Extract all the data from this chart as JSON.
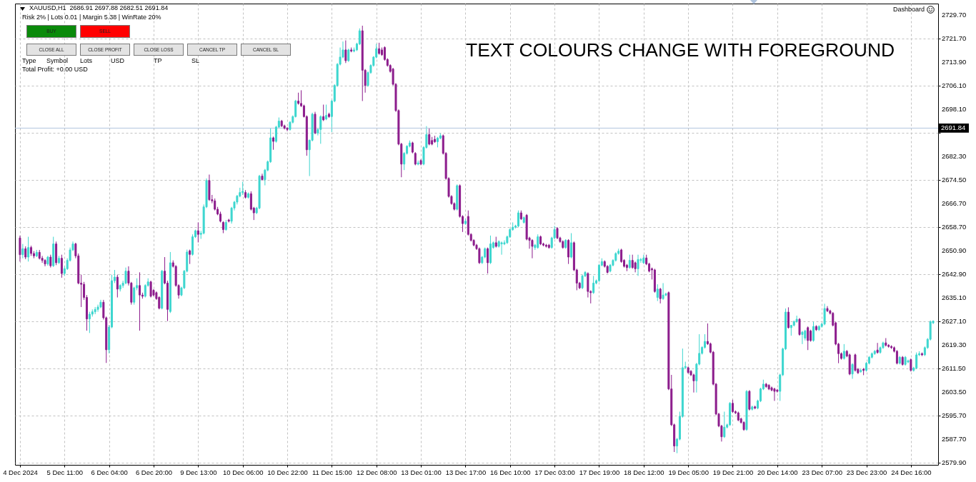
{
  "chart_data": {
    "type": "candlestick",
    "title": "XAUUSD,H1  2686.91 2697.88 2682.51 2691.84",
    "subtitle": "Risk 2% | Lots 0.01 | Margin 5.38 | WinRate 20%",
    "annotations": [
      "BUY",
      "SELL",
      "CLOSE ALL",
      "CLOSE PROFIT",
      "CLOSE LOSS",
      "CANCEL TP",
      "CANCEL SL",
      "Type",
      "Symbol",
      "Lots",
      "USD",
      "TP",
      "SL",
      "Total Profit: +0.00 USD",
      "TEXT COLOURS CHANGE WITH FOREGROUND",
      "Dashboard"
    ],
    "categories": [
      "4 Dec 2024",
      null,
      null,
      null,
      null,
      null,
      null,
      null,
      null,
      null,
      null,
      null,
      null,
      null,
      null,
      null,
      "5 Dec 11:00",
      null,
      null,
      null,
      null,
      null,
      null,
      null,
      null,
      null,
      null,
      null,
      null,
      null,
      null,
      null,
      "6 Dec 04:00",
      null,
      null,
      null,
      null,
      null,
      null,
      null,
      null,
      null,
      null,
      null,
      null,
      null,
      null,
      null,
      "6 Dec 20:00",
      null,
      null,
      null,
      null,
      null,
      null,
      null,
      null,
      null,
      null,
      null,
      null,
      null,
      null,
      null,
      "9 Dec 13:00",
      null,
      null,
      null,
      null,
      null,
      null,
      null,
      null,
      null,
      null,
      null,
      null,
      null,
      null,
      null,
      "10 Dec 06:00",
      null,
      null,
      null,
      null,
      null,
      null,
      null,
      null,
      null,
      null,
      null,
      null,
      null,
      null,
      null,
      "10 Dec 22:00",
      null,
      null,
      null,
      null,
      null,
      null,
      null,
      null,
      null,
      null,
      null,
      null,
      null,
      null,
      null,
      "11 Dec 15:00",
      null,
      null,
      null,
      null,
      null,
      null,
      null,
      null,
      null,
      null,
      null,
      null,
      null,
      null,
      null,
      "12 Dec 08:00",
      null,
      null,
      null,
      null,
      null,
      null,
      null,
      null,
      null,
      null,
      null,
      null,
      null,
      null,
      null,
      "13 Dec 01:00",
      null,
      null,
      null,
      null,
      null,
      null,
      null,
      null,
      null,
      null,
      null,
      null,
      null,
      null,
      null,
      "13 Dec 17:00",
      null,
      null,
      null,
      null,
      null,
      null,
      null,
      null,
      null,
      null,
      null,
      null,
      null,
      null,
      null,
      "16 Dec 10:00",
      null,
      null,
      null,
      null,
      null,
      null,
      null,
      null,
      null,
      null,
      null,
      null,
      null,
      null,
      null,
      "17 Dec 03:00",
      null,
      null,
      null,
      null,
      null,
      null,
      null,
      null,
      null,
      null,
      null,
      null,
      null,
      null,
      null,
      "17 Dec 19:00",
      null,
      null,
      null,
      null,
      null,
      null,
      null,
      null,
      null,
      null,
      null,
      null,
      null,
      null,
      null,
      "18 Dec 12:00",
      null,
      null,
      null,
      null,
      null,
      null,
      null,
      null,
      null,
      null,
      null,
      null,
      null,
      null,
      null,
      "19 Dec 05:00",
      null,
      null,
      null,
      null,
      null,
      null,
      null,
      null,
      null,
      null,
      null,
      null,
      null,
      null,
      null,
      "19 Dec 21:00",
      null,
      null,
      null,
      null,
      null,
      null,
      null,
      null,
      null,
      null,
      null,
      null,
      null,
      null,
      null,
      "20 Dec 14:00",
      null,
      null,
      null,
      null,
      null,
      null,
      null,
      null,
      null,
      null,
      null,
      null,
      null,
      null,
      null,
      "23 Dec 07:00",
      null,
      null,
      null,
      null,
      null,
      null,
      null,
      null,
      null,
      null,
      null,
      null,
      null,
      null,
      null,
      "23 Dec 23:00",
      null,
      null,
      null,
      null,
      null,
      null,
      null,
      null,
      null,
      null,
      null,
      null,
      null,
      null,
      null,
      "24 Dec 16:00",
      null,
      null,
      null,
      null,
      null,
      null,
      null,
      null
    ],
    "ohlc": [
      [
        2655.1,
        2655.9,
        2647.2,
        2649.5
      ],
      [
        2649.5,
        2653.1,
        2648.3,
        2651.5
      ],
      [
        2651.5,
        2652.3,
        2648.0,
        2648.7
      ],
      [
        2648.7,
        2655.5,
        2647.2,
        2651.9
      ],
      [
        2651.9,
        2652.5,
        2649.1,
        2649.9
      ],
      [
        2649.9,
        2650.7,
        2648.3,
        2649.1
      ],
      [
        2649.1,
        2651.1,
        2648.7,
        2650.3
      ],
      [
        2650.3,
        2651.1,
        2647.9,
        2648.3
      ],
      [
        2648.3,
        2649.1,
        2646.8,
        2647.6
      ],
      [
        2647.6,
        2648.0,
        2645.6,
        2646.4
      ],
      [
        2646.4,
        2649.1,
        2645.8,
        2648.7
      ],
      [
        2648.7,
        2649.5,
        2645.2,
        2645.8
      ],
      [
        2645.8,
        2655.5,
        2645.4,
        2653.1
      ],
      [
        2653.1,
        2653.9,
        2646.0,
        2646.8
      ],
      [
        2646.8,
        2649.1,
        2646.4,
        2648.3
      ],
      [
        2648.3,
        2649.5,
        2641.8,
        2643.2
      ],
      [
        2643.2,
        2645.6,
        2642.4,
        2644.8
      ],
      [
        2644.8,
        2648.3,
        2644.4,
        2647.6
      ],
      [
        2647.6,
        2651.9,
        2647.2,
        2651.1
      ],
      [
        2651.1,
        2653.9,
        2650.7,
        2653.1
      ],
      [
        2653.1,
        2653.5,
        2648.3,
        2649.1
      ],
      [
        2649.1,
        2649.9,
        2639.6,
        2640.0
      ],
      [
        2640.0,
        2642.8,
        2632.0,
        2639.6
      ],
      [
        2639.6,
        2640.4,
        2634.4,
        2635.2
      ],
      [
        2635.2,
        2636.0,
        2624.1,
        2628.0
      ],
      [
        2628.0,
        2630.4,
        2623.3,
        2629.6
      ],
      [
        2629.6,
        2631.2,
        2628.8,
        2630.4
      ],
      [
        2630.4,
        2632.0,
        2629.6,
        2631.2
      ],
      [
        2631.2,
        2632.8,
        2630.4,
        2632.0
      ],
      [
        2632.0,
        2634.4,
        2631.6,
        2633.6
      ],
      [
        2633.6,
        2634.4,
        2627.8,
        2628.4
      ],
      [
        2628.4,
        2628.8,
        2613.3,
        2617.7
      ],
      [
        2617.7,
        2626.0,
        2616.5,
        2625.3
      ],
      [
        2625.3,
        2642.8,
        2624.9,
        2640.8
      ],
      [
        2640.8,
        2644.4,
        2640.0,
        2642.0
      ],
      [
        2642.0,
        2642.8,
        2635.2,
        2638.0
      ],
      [
        2638.0,
        2639.6,
        2637.2,
        2639.2
      ],
      [
        2639.2,
        2640.8,
        2638.4,
        2640.0
      ],
      [
        2640.0,
        2645.2,
        2639.6,
        2644.0
      ],
      [
        2644.0,
        2645.6,
        2639.2,
        2640.0
      ],
      [
        2640.0,
        2640.4,
        2632.8,
        2633.6
      ],
      [
        2633.6,
        2638.8,
        2632.8,
        2638.4
      ],
      [
        2638.4,
        2641.6,
        2637.6,
        2639.2
      ],
      [
        2639.2,
        2643.6,
        2624.1,
        2636.0
      ],
      [
        2636.0,
        2636.8,
        2634.8,
        2635.6
      ],
      [
        2635.6,
        2639.6,
        2635.2,
        2639.2
      ],
      [
        2639.2,
        2641.6,
        2638.8,
        2640.4
      ],
      [
        2640.4,
        2640.8,
        2635.2,
        2635.6
      ],
      [
        2637.6,
        2638.0,
        2635.6,
        2636.0
      ],
      [
        2636.8,
        2637.2,
        2634.4,
        2634.8
      ],
      [
        2635.2,
        2635.6,
        2631.2,
        2631.6
      ],
      [
        2631.6,
        2644.4,
        2631.2,
        2644.0
      ],
      [
        2644.0,
        2648.7,
        2639.6,
        2640.0
      ],
      [
        2640.0,
        2640.8,
        2627.3,
        2631.2
      ],
      [
        2630.5,
        2650.4,
        2630.0,
        2646.8
      ],
      [
        2646.8,
        2647.6,
        2645.2,
        2645.6
      ],
      [
        2645.6,
        2646.0,
        2638.8,
        2639.2
      ],
      [
        2639.2,
        2639.6,
        2634.8,
        2636.0
      ],
      [
        2636.0,
        2638.8,
        2635.6,
        2638.4
      ],
      [
        2638.4,
        2644.4,
        2638.0,
        2644.0
      ],
      [
        2644.0,
        2651.2,
        2643.6,
        2650.4
      ],
      [
        2650.8,
        2651.2,
        2646.4,
        2649.6
      ],
      [
        2649.6,
        2656.3,
        2649.2,
        2655.5
      ],
      [
        2655.5,
        2657.9,
        2655.1,
        2657.5
      ],
      [
        2657.5,
        2660.3,
        2653.6,
        2656.3
      ],
      [
        2656.3,
        2657.5,
        2654.8,
        2656.7
      ],
      [
        2656.7,
        2666.3,
        2656.3,
        2665.5
      ],
      [
        2665.5,
        2675.0,
        2665.1,
        2674.3
      ],
      [
        2674.3,
        2676.3,
        2667.5,
        2667.9
      ],
      [
        2667.9,
        2669.5,
        2666.7,
        2667.5
      ],
      [
        2667.5,
        2668.3,
        2664.3,
        2664.7
      ],
      [
        2664.7,
        2665.5,
        2662.7,
        2663.1
      ],
      [
        2663.1,
        2663.9,
        2660.3,
        2660.7
      ],
      [
        2660.3,
        2660.7,
        2656.7,
        2657.9
      ],
      [
        2657.9,
        2661.1,
        2657.5,
        2660.3
      ],
      [
        2661.1,
        2661.5,
        2660.3,
        2660.7
      ],
      [
        2660.7,
        2665.5,
        2659.9,
        2665.1
      ],
      [
        2665.1,
        2667.5,
        2664.3,
        2667.1
      ],
      [
        2667.1,
        2669.5,
        2666.3,
        2669.1
      ],
      [
        2669.1,
        2671.9,
        2668.7,
        2670.3
      ],
      [
        2670.3,
        2673.9,
        2669.5,
        2670.7
      ],
      [
        2670.3,
        2671.1,
        2668.3,
        2668.7
      ],
      [
        2668.7,
        2670.3,
        2668.3,
        2669.9
      ],
      [
        2669.9,
        2670.7,
        2664.3,
        2664.7
      ],
      [
        2665.1,
        2665.5,
        2661.1,
        2663.5
      ],
      [
        2663.5,
        2665.5,
        2663.1,
        2665.1
      ],
      [
        2665.1,
        2676.2,
        2664.7,
        2675.8
      ],
      [
        2675.8,
        2676.6,
        2674.3,
        2674.6
      ],
      [
        2674.6,
        2678.2,
        2672.7,
        2677.8
      ],
      [
        2677.8,
        2681.0,
        2677.4,
        2680.6
      ],
      [
        2680.6,
        2691.8,
        2680.2,
        2688.6
      ],
      [
        2688.6,
        2689.0,
        2684.6,
        2687.4
      ],
      [
        2687.4,
        2692.6,
        2687.0,
        2692.2
      ],
      [
        2692.2,
        2695.4,
        2691.8,
        2694.2
      ],
      [
        2694.2,
        2694.6,
        2692.2,
        2692.6
      ],
      [
        2692.6,
        2693.0,
        2691.4,
        2691.8
      ],
      [
        2691.8,
        2692.2,
        2690.8,
        2691.4
      ],
      [
        2691.4,
        2694.2,
        2691.0,
        2693.8
      ],
      [
        2693.8,
        2696.1,
        2693.4,
        2695.7
      ],
      [
        2695.7,
        2701.3,
        2695.4,
        2700.9
      ],
      [
        2700.9,
        2703.7,
        2699.7,
        2700.1
      ],
      [
        2700.1,
        2704.5,
        2698.9,
        2699.3
      ],
      [
        2699.3,
        2699.7,
        2695.4,
        2695.7
      ],
      [
        2695.7,
        2696.1,
        2682.6,
        2684.6
      ],
      [
        2684.6,
        2688.0,
        2675.8,
        2687.8
      ],
      [
        2687.8,
        2697.0,
        2687.4,
        2696.5
      ],
      [
        2696.5,
        2697.3,
        2689.8,
        2690.2
      ],
      [
        2690.2,
        2691.8,
        2689.4,
        2691.4
      ],
      [
        2691.4,
        2696.1,
        2686.6,
        2695.7
      ],
      [
        2695.7,
        2699.7,
        2694.2,
        2694.6
      ],
      [
        2694.9,
        2699.7,
        2694.5,
        2696.1
      ],
      [
        2696.5,
        2697.0,
        2695.3,
        2695.7
      ],
      [
        2695.7,
        2701.3,
        2690.5,
        2700.9
      ],
      [
        2700.9,
        2706.5,
        2700.5,
        2706.1
      ],
      [
        2706.1,
        2713.6,
        2705.7,
        2713.2
      ],
      [
        2713.2,
        2718.8,
        2712.8,
        2715.6
      ],
      [
        2715.6,
        2720.8,
        2715.2,
        2718.0
      ],
      [
        2718.0,
        2721.2,
        2713.6,
        2714.4
      ],
      [
        2714.4,
        2718.4,
        2714.0,
        2718.0
      ],
      [
        2718.0,
        2718.8,
        2717.2,
        2717.6
      ],
      [
        2717.6,
        2718.8,
        2717.2,
        2718.0
      ],
      [
        2718.0,
        2720.4,
        2717.6,
        2720.0
      ],
      [
        2720.0,
        2725.2,
        2719.6,
        2724.4
      ],
      [
        2724.4,
        2726.1,
        2700.9,
        2711.2
      ],
      [
        2711.2,
        2711.6,
        2703.7,
        2706.1
      ],
      [
        2706.1,
        2710.8,
        2705.7,
        2710.4
      ],
      [
        2710.4,
        2713.2,
        2710.0,
        2712.8
      ],
      [
        2712.8,
        2715.9,
        2712.4,
        2715.6
      ],
      [
        2715.6,
        2720.0,
        2715.2,
        2718.4
      ],
      [
        2718.4,
        2720.4,
        2716.4,
        2716.8
      ],
      [
        2718.0,
        2718.8,
        2716.0,
        2716.4
      ],
      [
        2718.8,
        2719.2,
        2714.4,
        2714.8
      ],
      [
        2714.8,
        2715.2,
        2712.4,
        2712.8
      ],
      [
        2712.8,
        2713.2,
        2710.4,
        2710.8
      ],
      [
        2711.6,
        2712.0,
        2706.1,
        2706.5
      ],
      [
        2706.5,
        2706.9,
        2697.3,
        2697.7
      ],
      [
        2697.7,
        2698.1,
        2686.1,
        2686.5
      ],
      [
        2686.5,
        2686.9,
        2675.4,
        2679.8
      ],
      [
        2679.8,
        2683.8,
        2677.8,
        2683.4
      ],
      [
        2683.4,
        2686.1,
        2683.0,
        2685.8
      ],
      [
        2685.8,
        2687.7,
        2685.4,
        2686.9
      ],
      [
        2686.9,
        2687.3,
        2683.4,
        2683.8
      ],
      [
        2683.4,
        2683.8,
        2679.4,
        2679.8
      ],
      [
        2679.8,
        2681.0,
        2679.4,
        2680.2
      ],
      [
        2681.0,
        2681.4,
        2679.4,
        2679.8
      ],
      [
        2679.8,
        2685.8,
        2679.4,
        2685.4
      ],
      [
        2685.4,
        2692.5,
        2685.0,
        2689.7
      ],
      [
        2689.7,
        2691.7,
        2686.1,
        2686.5
      ],
      [
        2687.7,
        2688.9,
        2686.1,
        2686.5
      ],
      [
        2688.1,
        2689.3,
        2686.9,
        2687.3
      ],
      [
        2687.3,
        2688.9,
        2685.4,
        2688.5
      ],
      [
        2688.5,
        2690.1,
        2688.1,
        2689.3
      ],
      [
        2689.3,
        2689.7,
        2683.0,
        2683.4
      ],
      [
        2683.4,
        2683.8,
        2674.6,
        2675.0
      ],
      [
        2675.0,
        2675.4,
        2668.6,
        2669.0
      ],
      [
        2669.0,
        2669.4,
        2666.2,
        2666.6
      ],
      [
        2666.6,
        2667.0,
        2664.3,
        2664.7
      ],
      [
        2664.7,
        2673.0,
        2664.3,
        2672.6
      ],
      [
        2672.6,
        2673.0,
        2661.9,
        2662.3
      ],
      [
        2662.3,
        2662.7,
        2657.1,
        2659.9
      ],
      [
        2659.9,
        2661.5,
        2659.5,
        2660.7
      ],
      [
        2662.3,
        2664.3,
        2655.9,
        2656.3
      ],
      [
        2656.3,
        2656.7,
        2653.9,
        2654.3
      ],
      [
        2654.3,
        2654.7,
        2652.3,
        2652.7
      ],
      [
        2652.7,
        2653.1,
        2651.1,
        2651.5
      ],
      [
        2651.5,
        2651.9,
        2646.4,
        2646.8
      ],
      [
        2646.8,
        2649.1,
        2646.4,
        2648.7
      ],
      [
        2648.7,
        2651.9,
        2648.3,
        2651.5
      ],
      [
        2651.5,
        2651.9,
        2643.2,
        2646.8
      ],
      [
        2646.8,
        2655.9,
        2646.4,
        2653.1
      ],
      [
        2651.9,
        2653.9,
        2651.5,
        2653.5
      ],
      [
        2653.5,
        2655.5,
        2651.9,
        2652.3
      ],
      [
        2652.3,
        2654.3,
        2651.9,
        2653.9
      ],
      [
        2653.1,
        2653.9,
        2649.5,
        2653.5
      ],
      [
        2653.1,
        2654.3,
        2652.7,
        2653.5
      ],
      [
        2653.5,
        2655.9,
        2653.1,
        2655.5
      ],
      [
        2655.5,
        2658.3,
        2655.1,
        2657.9
      ],
      [
        2657.9,
        2660.3,
        2657.5,
        2658.7
      ],
      [
        2658.7,
        2659.5,
        2658.3,
        2659.1
      ],
      [
        2659.1,
        2664.3,
        2658.7,
        2663.5
      ],
      [
        2663.5,
        2664.3,
        2661.1,
        2661.5
      ],
      [
        2660.3,
        2662.3,
        2659.9,
        2661.9
      ],
      [
        2662.7,
        2663.1,
        2654.3,
        2654.7
      ],
      [
        2655.1,
        2655.5,
        2651.5,
        2654.3
      ],
      [
        2654.3,
        2654.7,
        2648.3,
        2652.3
      ],
      [
        2651.9,
        2653.1,
        2651.1,
        2652.7
      ],
      [
        2651.9,
        2656.3,
        2651.5,
        2655.5
      ],
      [
        2655.5,
        2655.9,
        2652.7,
        2653.1
      ],
      [
        2653.1,
        2653.5,
        2652.3,
        2652.7
      ],
      [
        2652.7,
        2653.1,
        2651.9,
        2652.3
      ],
      [
        2652.7,
        2653.1,
        2651.5,
        2651.9
      ],
      [
        2651.9,
        2655.5,
        2651.5,
        2655.1
      ],
      [
        2655.1,
        2659.1,
        2654.7,
        2657.9
      ],
      [
        2658.3,
        2658.7,
        2654.7,
        2655.1
      ],
      [
        2655.1,
        2655.5,
        2653.5,
        2653.9
      ],
      [
        2653.9,
        2654.3,
        2651.5,
        2651.9
      ],
      [
        2651.9,
        2654.7,
        2651.5,
        2654.3
      ],
      [
        2654.3,
        2654.7,
        2646.4,
        2648.7
      ],
      [
        2648.7,
        2656.7,
        2648.3,
        2653.5
      ],
      [
        2653.5,
        2653.9,
        2644.0,
        2644.4
      ],
      [
        2644.4,
        2644.8,
        2637.6,
        2640.0
      ],
      [
        2640.0,
        2640.4,
        2638.0,
        2638.4
      ],
      [
        2638.4,
        2642.8,
        2638.0,
        2642.4
      ],
      [
        2642.4,
        2644.0,
        2642.0,
        2643.6
      ],
      [
        2643.2,
        2643.6,
        2635.2,
        2637.2
      ],
      [
        2637.2,
        2637.6,
        2633.2,
        2636.8
      ],
      [
        2636.8,
        2642.4,
        2636.4,
        2640.0
      ],
      [
        2640.0,
        2641.2,
        2639.6,
        2640.8
      ],
      [
        2640.8,
        2646.4,
        2640.4,
        2646.0
      ],
      [
        2646.0,
        2648.3,
        2645.6,
        2647.2
      ],
      [
        2647.2,
        2647.6,
        2645.2,
        2645.6
      ],
      [
        2645.6,
        2646.0,
        2643.2,
        2643.6
      ],
      [
        2644.0,
        2646.4,
        2643.6,
        2646.0
      ],
      [
        2646.0,
        2648.0,
        2645.6,
        2647.6
      ],
      [
        2647.6,
        2650.3,
        2647.2,
        2649.9
      ],
      [
        2649.9,
        2651.5,
        2649.5,
        2650.7
      ],
      [
        2651.1,
        2651.5,
        2646.8,
        2647.2
      ],
      [
        2647.6,
        2648.0,
        2645.2,
        2645.6
      ],
      [
        2646.0,
        2646.4,
        2644.0,
        2645.2
      ],
      [
        2645.2,
        2649.5,
        2644.8,
        2647.6
      ],
      [
        2647.6,
        2649.5,
        2644.8,
        2645.2
      ],
      [
        2646.8,
        2647.2,
        2643.6,
        2644.8
      ],
      [
        2644.8,
        2649.5,
        2642.4,
        2647.9
      ],
      [
        2647.6,
        2648.4,
        2646.8,
        2647.9
      ],
      [
        2646.8,
        2649.5,
        2646.4,
        2648.4
      ],
      [
        2648.4,
        2649.5,
        2646.0,
        2646.4
      ],
      [
        2646.4,
        2646.8,
        2643.6,
        2644.0
      ],
      [
        2644.8,
        2645.2,
        2641.2,
        2644.4
      ],
      [
        2644.4,
        2644.8,
        2636.8,
        2637.2
      ],
      [
        2635.2,
        2639.6,
        2634.0,
        2638.0
      ],
      [
        2638.0,
        2638.4,
        2633.2,
        2634.8
      ],
      [
        2634.8,
        2640.0,
        2634.4,
        2636.0
      ],
      [
        2636.0,
        2636.8,
        2635.6,
        2636.4
      ],
      [
        2636.8,
        2637.2,
        2604.2,
        2604.6
      ],
      [
        2604.6,
        2609.3,
        2592.2,
        2592.6
      ],
      [
        2592.6,
        2593.0,
        2583.5,
        2585.5
      ],
      [
        2585.5,
        2588.2,
        2583.1,
        2587.8
      ],
      [
        2587.8,
        2597.0,
        2587.4,
        2595.4
      ],
      [
        2595.4,
        2618.1,
        2595.0,
        2611.7
      ],
      [
        2611.7,
        2613.7,
        2611.3,
        2612.1
      ],
      [
        2611.7,
        2612.1,
        2609.7,
        2610.1
      ],
      [
        2610.5,
        2610.9,
        2608.9,
        2609.3
      ],
      [
        2609.3,
        2609.7,
        2603.4,
        2607.3
      ],
      [
        2607.3,
        2613.3,
        2603.4,
        2612.9
      ],
      [
        2612.9,
        2622.9,
        2612.5,
        2616.5
      ],
      [
        2616.5,
        2618.9,
        2616.1,
        2618.5
      ],
      [
        2618.5,
        2622.9,
        2618.1,
        2620.5
      ],
      [
        2620.5,
        2626.5,
        2619.3,
        2619.7
      ],
      [
        2619.7,
        2620.1,
        2616.5,
        2616.9
      ],
      [
        2616.9,
        2617.3,
        2605.8,
        2606.2
      ],
      [
        2606.2,
        2606.6,
        2595.8,
        2596.2
      ],
      [
        2596.2,
        2596.6,
        2591.8,
        2592.2
      ],
      [
        2592.2,
        2592.6,
        2587.0,
        2588.6
      ],
      [
        2588.6,
        2597.0,
        2588.2,
        2591.8
      ],
      [
        2591.8,
        2593.0,
        2591.4,
        2592.6
      ],
      [
        2592.6,
        2600.2,
        2592.2,
        2599.8
      ],
      [
        2599.8,
        2601.0,
        2596.6,
        2597.0
      ],
      [
        2597.0,
        2597.4,
        2596.2,
        2596.6
      ],
      [
        2596.6,
        2597.0,
        2593.8,
        2594.2
      ],
      [
        2594.6,
        2595.0,
        2593.0,
        2593.4
      ],
      [
        2593.4,
        2593.8,
        2590.6,
        2591.0
      ],
      [
        2591.0,
        2604.2,
        2590.6,
        2603.8
      ],
      [
        2603.8,
        2604.2,
        2597.4,
        2597.8
      ],
      [
        2597.8,
        2599.0,
        2597.4,
        2598.6
      ],
      [
        2598.6,
        2599.0,
        2597.8,
        2598.2
      ],
      [
        2598.2,
        2601.0,
        2597.8,
        2600.6
      ],
      [
        2600.6,
        2605.0,
        2600.2,
        2604.6
      ],
      [
        2604.6,
        2607.7,
        2604.2,
        2606.2
      ],
      [
        2606.2,
        2606.6,
        2605.0,
        2605.4
      ],
      [
        2605.8,
        2606.2,
        2604.2,
        2604.6
      ],
      [
        2605.0,
        2605.4,
        2603.8,
        2604.2
      ],
      [
        2604.6,
        2605.0,
        2600.6,
        2603.8
      ],
      [
        2604.2,
        2604.6,
        2603.4,
        2603.8
      ],
      [
        2603.8,
        2609.7,
        2600.6,
        2609.3
      ],
      [
        2609.3,
        2618.4,
        2608.9,
        2618.0
      ],
      [
        2618.0,
        2631.5,
        2617.6,
        2630.3
      ],
      [
        2630.3,
        2631.9,
        2624.8,
        2625.1
      ],
      [
        2625.1,
        2626.0,
        2622.4,
        2625.9
      ],
      [
        2625.9,
        2627.5,
        2625.5,
        2627.1
      ],
      [
        2627.1,
        2629.1,
        2626.7,
        2627.9
      ],
      [
        2627.9,
        2628.3,
        2622.4,
        2622.8
      ],
      [
        2622.8,
        2624.0,
        2619.6,
        2623.6
      ],
      [
        2621.6,
        2624.4,
        2620.8,
        2624.0
      ],
      [
        2625.1,
        2625.5,
        2617.6,
        2620.8
      ],
      [
        2624.0,
        2624.4,
        2620.4,
        2620.8
      ],
      [
        2620.8,
        2627.1,
        2620.4,
        2625.5
      ],
      [
        2625.5,
        2625.9,
        2624.0,
        2624.4
      ],
      [
        2624.4,
        2625.9,
        2624.0,
        2625.5
      ],
      [
        2625.5,
        2626.7,
        2625.1,
        2626.3
      ],
      [
        2626.3,
        2633.1,
        2625.9,
        2631.5
      ],
      [
        2631.5,
        2632.3,
        2630.3,
        2630.7
      ],
      [
        2630.7,
        2631.1,
        2629.5,
        2629.9
      ],
      [
        2629.9,
        2630.3,
        2625.5,
        2625.9
      ],
      [
        2626.7,
        2627.1,
        2619.2,
        2619.6
      ],
      [
        2619.6,
        2620.0,
        2613.2,
        2616.4
      ],
      [
        2616.4,
        2616.8,
        2614.4,
        2614.8
      ],
      [
        2614.8,
        2619.6,
        2614.4,
        2617.2
      ],
      [
        2617.2,
        2617.6,
        2615.2,
        2615.6
      ],
      [
        2616.0,
        2616.4,
        2609.2,
        2609.6
      ],
      [
        2609.6,
        2613.2,
        2608.0,
        2612.8
      ],
      [
        2616.0,
        2616.4,
        2610.4,
        2610.8
      ],
      [
        2611.2,
        2611.6,
        2609.6,
        2610.0
      ],
      [
        2610.4,
        2611.2,
        2610.0,
        2610.8
      ],
      [
        2611.2,
        2611.6,
        2609.2,
        2610.8
      ],
      [
        2610.8,
        2613.6,
        2610.4,
        2613.2
      ],
      [
        2613.2,
        2615.6,
        2612.8,
        2615.2
      ],
      [
        2615.2,
        2616.8,
        2614.8,
        2616.4
      ],
      [
        2616.4,
        2617.6,
        2616.0,
        2617.2
      ],
      [
        2617.6,
        2620.0,
        2616.4,
        2616.8
      ],
      [
        2616.8,
        2618.8,
        2616.4,
        2618.4
      ],
      [
        2618.4,
        2620.4,
        2618.0,
        2620.0
      ],
      [
        2620.0,
        2621.6,
        2618.8,
        2619.2
      ],
      [
        2619.2,
        2619.6,
        2618.4,
        2618.8
      ],
      [
        2618.8,
        2619.2,
        2618.0,
        2618.4
      ],
      [
        2618.4,
        2618.8,
        2616.8,
        2617.2
      ],
      [
        2617.2,
        2617.6,
        2612.8,
        2613.2
      ],
      [
        2613.2,
        2615.6,
        2612.8,
        2615.2
      ],
      [
        2615.2,
        2615.6,
        2612.4,
        2612.8
      ],
      [
        2612.8,
        2615.6,
        2612.4,
        2615.2
      ],
      [
        2613.6,
        2614.4,
        2613.2,
        2614.0
      ],
      [
        2614.4,
        2614.8,
        2610.4,
        2610.8
      ],
      [
        2610.8,
        2612.0,
        2610.4,
        2611.6
      ],
      [
        2611.6,
        2616.8,
        2611.2,
        2616.0
      ],
      [
        2616.0,
        2617.2,
        2615.6,
        2616.4
      ],
      [
        2616.4,
        2616.8,
        2615.6,
        2616.0
      ],
      [
        2616.0,
        2618.8,
        2615.6,
        2618.4
      ],
      [
        2618.4,
        2621.6,
        2618.0,
        2621.2
      ],
      [
        2621.2,
        2627.5,
        2620.8,
        2627.1
      ],
      [
        2626.7,
        2627.5,
        2626.3,
        2627.3
      ]
    ],
    "colors": [
      "#8c1c8c",
      "#3dd6cf",
      "#8c1c8c",
      "#3dd6cf",
      "#8c1c8c",
      "#8c1c8c",
      "#3dd6cf",
      "#8c1c8c",
      "#8c1c8c",
      "#8c1c8c",
      "#3dd6cf",
      "#8c1c8c",
      "#3dd6cf",
      "#8c1c8c",
      "#3dd6cf",
      "#8c1c8c",
      "#3dd6cf",
      "#3dd6cf",
      "#3dd6cf",
      "#3dd6cf",
      "#8c1c8c",
      "#8c1c8c",
      "#8c1c8c",
      "#8c1c8c",
      "#8c1c8c",
      "#3dd6cf",
      "#3dd6cf",
      "#3dd6cf",
      "#3dd6cf",
      "#3dd6cf",
      "#8c1c8c",
      "#8c1c8c",
      "#3dd6cf",
      "#3dd6cf",
      "#3dd6cf",
      "#8c1c8c",
      "#3dd6cf",
      "#3dd6cf",
      "#3dd6cf",
      "#8c1c8c",
      "#8c1c8c",
      "#3dd6cf",
      "#3dd6cf",
      "#8c1c8c",
      "#8c1c8c",
      "#3dd6cf",
      "#3dd6cf",
      "#8c1c8c",
      "#8c1c8c",
      "#8c1c8c",
      "#8c1c8c",
      "#3dd6cf",
      "#8c1c8c",
      "#8c1c8c",
      "#3dd6cf",
      "#8c1c8c",
      "#8c1c8c",
      "#8c1c8c",
      "#3dd6cf",
      "#3dd6cf",
      "#3dd6cf",
      "#8c1c8c",
      "#3dd6cf",
      "#3dd6cf",
      "#8c1c8c",
      "#3dd6cf",
      "#3dd6cf",
      "#3dd6cf",
      "#8c1c8c",
      "#8c1c8c",
      "#8c1c8c",
      "#8c1c8c",
      "#8c1c8c",
      "#8c1c8c",
      "#3dd6cf",
      "#8c1c8c",
      "#3dd6cf",
      "#3dd6cf",
      "#3dd6cf",
      "#3dd6cf",
      "#3dd6cf",
      "#8c1c8c",
      "#3dd6cf",
      "#8c1c8c",
      "#8c1c8c",
      "#3dd6cf",
      "#3dd6cf",
      "#8c1c8c",
      "#3dd6cf",
      "#3dd6cf",
      "#3dd6cf",
      "#8c1c8c",
      "#3dd6cf",
      "#3dd6cf",
      "#8c1c8c",
      "#8c1c8c",
      "#8c1c8c",
      "#3dd6cf",
      "#3dd6cf",
      "#3dd6cf",
      "#8c1c8c",
      "#8c1c8c",
      "#8c1c8c",
      "#8c1c8c",
      "#3dd6cf",
      "#3dd6cf",
      "#8c1c8c",
      "#3dd6cf",
      "#3dd6cf",
      "#8c1c8c",
      "#3dd6cf",
      "#8c1c8c",
      "#3dd6cf",
      "#3dd6cf",
      "#3dd6cf",
      "#3dd6cf",
      "#3dd6cf",
      "#8c1c8c",
      "#3dd6cf",
      "#8c1c8c",
      "#3dd6cf",
      "#3dd6cf",
      "#3dd6cf",
      "#8c1c8c",
      "#8c1c8c",
      "#3dd6cf",
      "#3dd6cf",
      "#3dd6cf",
      "#3dd6cf",
      "#8c1c8c",
      "#8c1c8c",
      "#8c1c8c",
      "#8c1c8c",
      "#8c1c8c",
      "#8c1c8c",
      "#8c1c8c",
      "#8c1c8c",
      "#8c1c8c",
      "#3dd6cf",
      "#3dd6cf",
      "#3dd6cf",
      "#8c1c8c",
      "#8c1c8c",
      "#3dd6cf",
      "#8c1c8c",
      "#3dd6cf",
      "#3dd6cf",
      "#8c1c8c",
      "#8c1c8c",
      "#8c1c8c",
      "#3dd6cf",
      "#3dd6cf",
      "#8c1c8c",
      "#8c1c8c",
      "#8c1c8c",
      "#8c1c8c",
      "#8c1c8c",
      "#3dd6cf",
      "#8c1c8c",
      "#8c1c8c",
      "#3dd6cf",
      "#8c1c8c",
      "#8c1c8c",
      "#8c1c8c",
      "#8c1c8c",
      "#8c1c8c",
      "#3dd6cf",
      "#3dd6cf",
      "#8c1c8c",
      "#3dd6cf",
      "#3dd6cf",
      "#8c1c8c",
      "#3dd6cf",
      "#3dd6cf",
      "#3dd6cf",
      "#3dd6cf",
      "#3dd6cf",
      "#3dd6cf",
      "#3dd6cf",
      "#3dd6cf",
      "#8c1c8c",
      "#3dd6cf",
      "#8c1c8c",
      "#8c1c8c",
      "#8c1c8c",
      "#3dd6cf",
      "#3dd6cf",
      "#8c1c8c",
      "#8c1c8c",
      "#8c1c8c",
      "#8c1c8c",
      "#3dd6cf",
      "#3dd6cf",
      "#8c1c8c",
      "#8c1c8c",
      "#8c1c8c",
      "#3dd6cf",
      "#8c1c8c",
      "#3dd6cf",
      "#8c1c8c",
      "#8c1c8c",
      "#8c1c8c",
      "#3dd6cf",
      "#3dd6cf",
      "#8c1c8c",
      "#8c1c8c",
      "#3dd6cf",
      "#3dd6cf",
      "#3dd6cf",
      "#3dd6cf",
      "#8c1c8c",
      "#8c1c8c",
      "#3dd6cf",
      "#3dd6cf",
      "#3dd6cf",
      "#3dd6cf",
      "#8c1c8c",
      "#8c1c8c",
      "#8c1c8c",
      "#3dd6cf",
      "#8c1c8c",
      "#8c1c8c",
      "#3dd6cf",
      "#3dd6cf",
      "#3dd6cf",
      "#8c1c8c",
      "#8c1c8c",
      "#8c1c8c",
      "#8c1c8c",
      "#3dd6cf",
      "#8c1c8c",
      "#3dd6cf",
      "#3dd6cf",
      "#8c1c8c",
      "#8c1c8c",
      "#8c1c8c",
      "#3dd6cf",
      "#3dd6cf",
      "#3dd6cf",
      "#3dd6cf",
      "#8c1c8c",
      "#8c1c8c",
      "#8c1c8c",
      "#3dd6cf",
      "#3dd6cf",
      "#3dd6cf",
      "#3dd6cf",
      "#8c1c8c",
      "#8c1c8c",
      "#8c1c8c",
      "#8c1c8c",
      "#8c1c8c",
      "#8c1c8c",
      "#3dd6cf",
      "#3dd6cf",
      "#3dd6cf",
      "#8c1c8c",
      "#8c1c8c",
      "#8c1c8c",
      "#8c1c8c",
      "#8c1c8c",
      "#3dd6cf",
      "#8c1c8c",
      "#3dd6cf",
      "#8c1c8c",
      "#3dd6cf",
      "#3dd6cf",
      "#3dd6cf",
      "#8c1c8c",
      "#8c1c8c",
      "#8c1c8c",
      "#8c1c8c",
      "#8c1c8c",
      "#3dd6cf",
      "#3dd6cf",
      "#3dd6cf",
      "#8c1c8c",
      "#3dd6cf",
      "#3dd6cf",
      "#3dd6cf",
      "#8c1c8c",
      "#3dd6cf",
      "#3dd6cf",
      "#8c1c8c",
      "#8c1c8c",
      "#3dd6cf",
      "#8c1c8c",
      "#3dd6cf",
      "#3dd6cf",
      "#3dd6cf",
      "#8c1c8c",
      "#8c1c8c",
      "#8c1c8c",
      "#8c1c8c",
      "#8c1c8c",
      "#8c1c8c",
      "#3dd6cf",
      "#8c1c8c",
      "#8c1c8c",
      "#3dd6cf",
      "#8c1c8c",
      "#8c1c8c",
      "#3dd6cf",
      "#8c1c8c",
      "#3dd6cf",
      "#3dd6cf",
      "#3dd6cf",
      "#3dd6cf",
      "#8c1c8c",
      "#3dd6cf",
      "#3dd6cf",
      "#8c1c8c",
      "#8c1c8c",
      "#8c1c8c",
      "#8c1c8c",
      "#8c1c8c",
      "#3dd6cf",
      "#8c1c8c",
      "#3dd6cf",
      "#3dd6cf",
      "#8c1c8c",
      "#3dd6cf",
      "#3dd6cf",
      "#3dd6cf",
      "#8c1c8c",
      "#3dd6cf",
      "#3dd6cf",
      "#3dd6cf",
      "#3dd6cf"
    ],
    "ylim": [
      2579.2,
      2733.5
    ],
    "yticks": [
      {
        "value": 2579.9,
        "label": "2579.90"
      },
      {
        "value": 2587.7,
        "label": "2587.70"
      },
      {
        "value": 2595.7,
        "label": "2595.70"
      },
      {
        "value": 2603.5,
        "label": "2603.50"
      },
      {
        "value": 2611.5,
        "label": "2611.50"
      },
      {
        "value": 2619.3,
        "label": "2619.30"
      },
      {
        "value": 2627.1,
        "label": "2627.10"
      },
      {
        "value": 2635.1,
        "label": "2635.10"
      },
      {
        "value": 2642.9,
        "label": "2642.90"
      },
      {
        "value": 2650.9,
        "label": "2650.90"
      },
      {
        "value": 2658.7,
        "label": "2658.70"
      },
      {
        "value": 2666.7,
        "label": "2666.70"
      },
      {
        "value": 2674.5,
        "label": "2674.50"
      },
      {
        "value": 2682.3,
        "label": "2682.30"
      },
      {
        "value": 2690.3,
        "label": null
      },
      {
        "value": 2698.1,
        "label": "2698.10"
      },
      {
        "value": 2706.1,
        "label": "2706.10"
      },
      {
        "value": 2713.9,
        "label": "2713.90"
      },
      {
        "value": 2721.7,
        "label": "2721.70"
      },
      {
        "value": 2729.7,
        "label": "2729.70"
      }
    ],
    "grid": true,
    "ref_lines": [
      {
        "axis": "y",
        "value": 2691.84,
        "label": "2691.84",
        "color": "#b0c4de"
      }
    ]
  }
}
